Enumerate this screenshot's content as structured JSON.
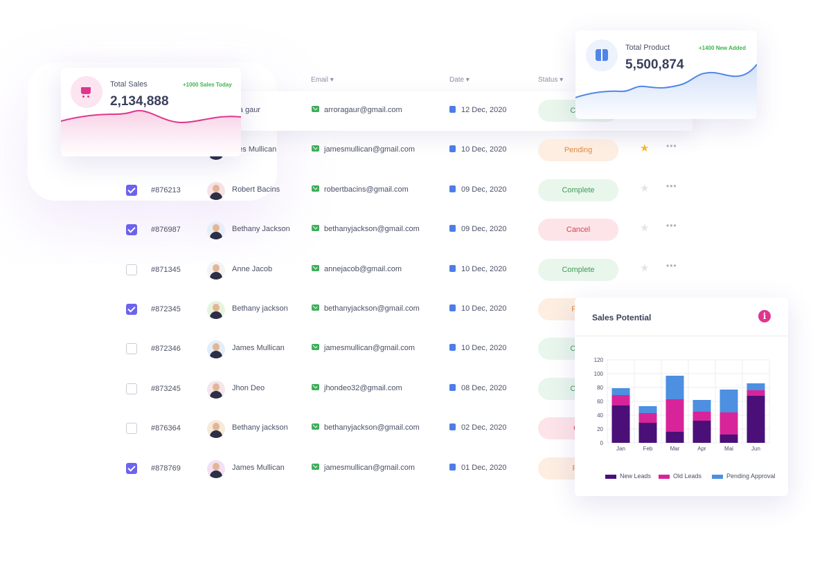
{
  "table": {
    "headers": {
      "email": "Email ▾",
      "date": "Date ▾",
      "status": "Status ▾"
    },
    "rows": [
      {
        "checked": false,
        "id": "",
        "name": "arora gaur",
        "name_visible": "ora gaur",
        "email": "arroragaur@gmail.com",
        "date": "12 Dec, 2020",
        "status": "Complete",
        "status_visible": "Com",
        "starred": false
      },
      {
        "checked": false,
        "id": "",
        "name": "James Mullican",
        "name_visible": "mes Mullican",
        "email": "jamesmullican@gmail.com",
        "date": "10 Dec, 2020",
        "status": "Pending",
        "starred": true
      },
      {
        "checked": true,
        "id": "#876213",
        "name": "Robert Bacins",
        "email": "robertbacins@gmail.com",
        "date": "09 Dec, 2020",
        "status": "Complete",
        "starred": false
      },
      {
        "checked": true,
        "id": "#876987",
        "name": "Bethany Jackson",
        "email": "bethanyjackson@gmail.com",
        "date": "09 Dec, 2020",
        "status": "Cancel",
        "starred": false
      },
      {
        "checked": false,
        "id": "#871345",
        "name": "Anne Jacob",
        "email": "annejacob@gmail.com",
        "date": "10 Dec, 2020",
        "status": "Complete",
        "starred": false
      },
      {
        "checked": true,
        "id": "#872345",
        "name": "Bethany jackson",
        "email": "bethanyjackson@gmail.com",
        "date": "10 Dec, 2020",
        "status": "Pending",
        "status_visible": "Pen",
        "starred": false
      },
      {
        "checked": false,
        "id": "#872346",
        "name": "James Mullican",
        "email": "jamesmullican@gmail.com",
        "date": "10 Dec, 2020",
        "status": "Complete",
        "status_visible": "Com",
        "starred": false
      },
      {
        "checked": false,
        "id": "#873245",
        "name": "Jhon Deo",
        "email": "jhondeo32@gmail.com",
        "date": "08 Dec, 2020",
        "status": "Complete",
        "status_visible": "Com",
        "starred": false
      },
      {
        "checked": false,
        "id": "#876364",
        "name": "Bethany jackson",
        "email": "bethanyjackson@gmail.com",
        "date": "02 Dec, 2020",
        "status": "Cancel",
        "status_visible": "Ca",
        "starred": false
      },
      {
        "checked": true,
        "id": "#878769",
        "name": "James Mullican",
        "email": "jamesmullican@gmail.com",
        "date": "01 Dec, 2020",
        "status": "Pending",
        "status_visible": "Per",
        "starred": false
      }
    ],
    "colors": {
      "checkbox": "#6c63ee",
      "star": "#f7b731",
      "complete": "#3f9b57",
      "pending": "#e2873e",
      "cancel": "#de3a4e"
    }
  },
  "sales_card": {
    "label": "Total Sales",
    "value": "2,134,888",
    "badge": "+1000 Sales Today",
    "icon": "cart-icon",
    "accent": "#e0358e"
  },
  "product_card": {
    "label": "Total Product",
    "value": "5,500,874",
    "badge": "+1400 New Added",
    "icon": "box-icon",
    "accent": "#4f86e8"
  },
  "chart_panel": {
    "title": "Sales Potential",
    "info_icon": "info-icon"
  },
  "chart_data": {
    "type": "bar",
    "stacked": true,
    "categories": [
      "Jan",
      "Feb",
      "Mar",
      "Apr",
      "Mai",
      "Jun"
    ],
    "series": [
      {
        "name": "New Leads",
        "color": "#4a1078",
        "values": [
          54,
          29,
          16,
          32,
          12,
          68
        ]
      },
      {
        "name": "Old Leads",
        "color": "#d8249a",
        "values": [
          15,
          14,
          47,
          13,
          32,
          8
        ]
      },
      {
        "name": "Pending Approval",
        "color": "#4d8fe0",
        "values": [
          10,
          10,
          34,
          17,
          33,
          10
        ]
      }
    ],
    "yticks": [
      0,
      20,
      40,
      60,
      80,
      100,
      120
    ],
    "ylim": [
      0,
      120
    ],
    "grid": true,
    "legend": "bottom"
  }
}
